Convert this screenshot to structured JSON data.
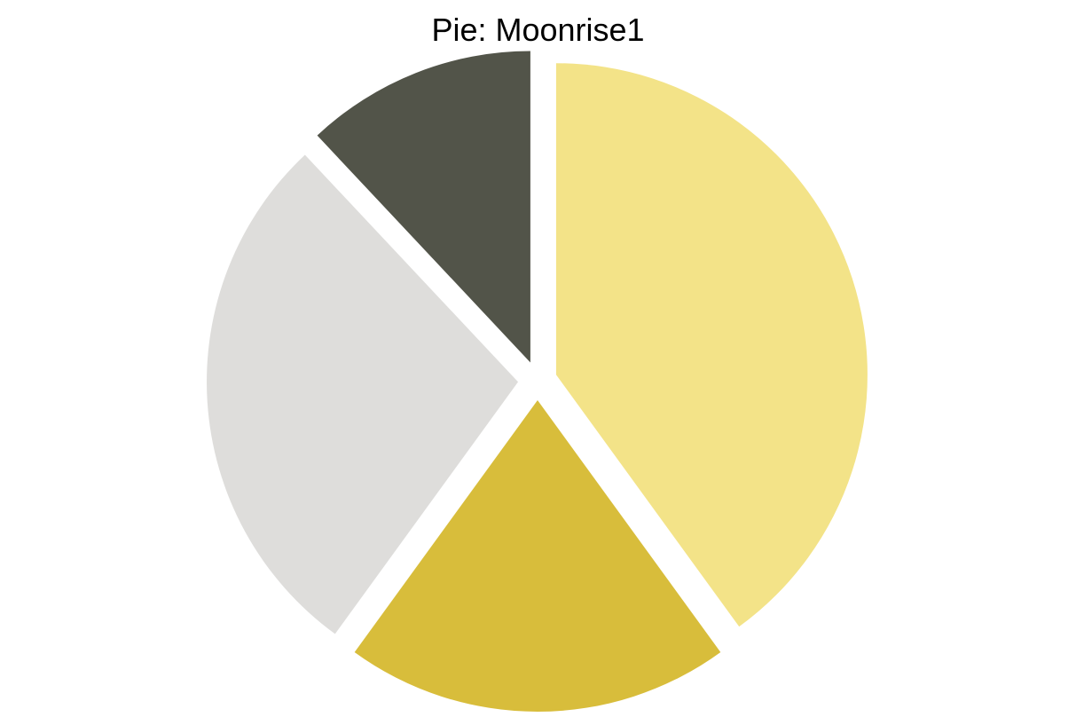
{
  "chart_data": {
    "type": "pie",
    "title": "Pie: Moonrise1",
    "slices": [
      {
        "value": 40,
        "color": "#F3E388"
      },
      {
        "value": 20,
        "color": "#D8BD3B"
      },
      {
        "value": 28,
        "color": "#DEDDDB"
      },
      {
        "value": 12,
        "color": "#525449"
      }
    ],
    "start_angle_deg": 0,
    "direction": "clockwise",
    "exploded": true,
    "legend": "none"
  }
}
